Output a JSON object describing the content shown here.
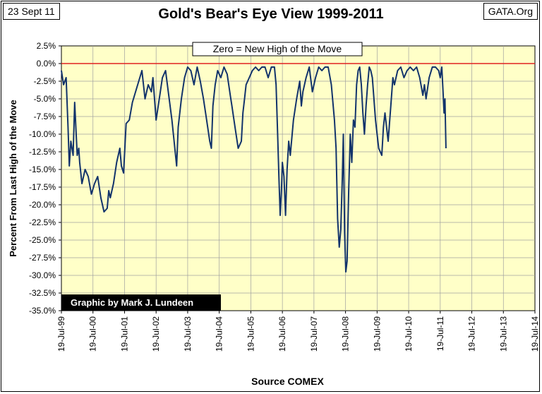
{
  "header": {
    "date": "23 Sept 11",
    "brand": "GATA.Org"
  },
  "chart_data": {
    "type": "line",
    "title": "Gold's Bear's Eye View 1999-2011",
    "xlabel": "Source COMEX",
    "ylabel": "Percent From Last High of the Move",
    "annotation": "Zero = New High of the Move",
    "credit": "Graphic by Mark J. Lundeen",
    "ylim": [
      -35,
      2.5
    ],
    "xlim": [
      1999.55,
      2014.55
    ],
    "grid": true,
    "yticks": [
      "2.5%",
      "0.0%",
      "-2.5%",
      "-5.0%",
      "-7.5%",
      "-10.0%",
      "-12.5%",
      "-15.0%",
      "-17.5%",
      "-20.0%",
      "-22.5%",
      "-25.0%",
      "-27.5%",
      "-30.0%",
      "-32.5%",
      "-35.0%"
    ],
    "xticks": [
      "19-Jul-99",
      "19-Jul-00",
      "19-Jul-01",
      "19-Jul-02",
      "19-Jul-03",
      "19-Jul-04",
      "19-Jul-05",
      "19-Jul-06",
      "19-Jul-07",
      "19-Jul-08",
      "19-Jul-09",
      "19-Jul-10",
      "19-Jul-11",
      "19-Jul-12",
      "19-Jul-13",
      "19-Jul-14"
    ],
    "reference_line": {
      "y": 0,
      "color": "#e02020"
    },
    "colors": {
      "plot_bg": "#ffffc8",
      "line": "#12336b",
      "grid": "#a0a0a0",
      "credit_bg": "#000000",
      "credit_text": "#ffffff"
    },
    "series": [
      {
        "name": "Percent From Last High",
        "x": [
          1999.55,
          1999.62,
          1999.7,
          1999.76,
          1999.8,
          1999.85,
          1999.92,
          1999.97,
          2000.05,
          2000.1,
          2000.13,
          2000.2,
          2000.3,
          2000.4,
          2000.5,
          2000.6,
          2000.7,
          2000.8,
          2000.9,
          2001.0,
          2001.05,
          2001.1,
          2001.2,
          2001.3,
          2001.4,
          2001.45,
          2001.52,
          2001.6,
          2001.7,
          2001.8,
          2001.9,
          2002.0,
          2002.1,
          2002.2,
          2002.3,
          2002.4,
          2002.45,
          2002.55,
          2002.65,
          2002.75,
          2002.85,
          2002.95,
          2003.05,
          2003.12,
          2003.2,
          2003.25,
          2003.35,
          2003.45,
          2003.55,
          2003.65,
          2003.75,
          2003.85,
          2003.95,
          2004.05,
          2004.15,
          2004.25,
          2004.3,
          2004.35,
          2004.42,
          2004.5,
          2004.6,
          2004.7,
          2004.8,
          2004.9,
          2004.95,
          2005.05,
          2005.15,
          2005.25,
          2005.3,
          2005.35,
          2005.4,
          2005.5,
          2005.6,
          2005.7,
          2005.8,
          2005.9,
          2006.0,
          2006.1,
          2006.2,
          2006.3,
          2006.35,
          2006.4,
          2006.44,
          2006.48,
          2006.52,
          2006.55,
          2006.6,
          2006.65,
          2006.7,
          2006.75,
          2006.8,
          2006.9,
          2007.0,
          2007.1,
          2007.15,
          2007.2,
          2007.3,
          2007.4,
          2007.5,
          2007.6,
          2007.7,
          2007.8,
          2007.9,
          2008.0,
          2008.1,
          2008.2,
          2008.25,
          2008.3,
          2008.35,
          2008.4,
          2008.45,
          2008.48,
          2008.52,
          2008.56,
          2008.6,
          2008.65,
          2008.7,
          2008.75,
          2008.8,
          2008.85,
          2008.9,
          2008.95,
          2009.0,
          2009.05,
          2009.1,
          2009.15,
          2009.2,
          2009.25,
          2009.3,
          2009.35,
          2009.4,
          2009.5,
          2009.6,
          2009.7,
          2009.75,
          2009.8,
          2009.9,
          2010.0,
          2010.05,
          2010.1,
          2010.2,
          2010.3,
          2010.4,
          2010.5,
          2010.6,
          2010.7,
          2010.8,
          2010.9,
          2011.0,
          2011.05,
          2011.1,
          2011.2,
          2011.3,
          2011.4,
          2011.5,
          2011.55,
          2011.6,
          2011.64,
          2011.67,
          2011.7,
          2011.73
        ],
        "values": [
          -1.0,
          -3.0,
          -2.0,
          -9.0,
          -14.5,
          -11.0,
          -13.0,
          -5.5,
          -13.0,
          -12.0,
          -14.0,
          -17.0,
          -15.0,
          -16.0,
          -18.5,
          -17.0,
          -16.0,
          -19.0,
          -21.0,
          -20.5,
          -18.0,
          -19.0,
          -17.0,
          -14.0,
          -12.0,
          -14.5,
          -15.5,
          -8.5,
          -8.0,
          -5.5,
          -4.0,
          -2.5,
          -1.0,
          -5.0,
          -3.0,
          -4.0,
          -2.0,
          -8.0,
          -5.0,
          -2.0,
          -1.0,
          -4.5,
          -8.0,
          -11.0,
          -14.5,
          -9.0,
          -5.0,
          -2.0,
          -0.5,
          -1.0,
          -3.0,
          -0.5,
          -2.5,
          -5.0,
          -8.0,
          -11.0,
          -12.0,
          -6.0,
          -3.0,
          -1.0,
          -2.0,
          -0.5,
          -1.5,
          -4.5,
          -6.0,
          -9.0,
          -12.0,
          -11.0,
          -7.0,
          -5.0,
          -3.0,
          -2.0,
          -1.0,
          -0.5,
          -1.0,
          -0.5,
          -0.5,
          -2.0,
          -0.5,
          -0.5,
          -3.0,
          -10.0,
          -16.0,
          -21.5,
          -18.0,
          -14.0,
          -16.0,
          -21.5,
          -15.0,
          -11.0,
          -13.0,
          -8.0,
          -5.0,
          -2.5,
          -6.0,
          -4.0,
          -2.0,
          -0.5,
          -4.0,
          -2.0,
          -0.5,
          -1.0,
          -0.5,
          -0.5,
          -3.0,
          -8.0,
          -12.0,
          -22.0,
          -26.0,
          -23.5,
          -16.0,
          -10.0,
          -24.0,
          -29.5,
          -28.0,
          -18.0,
          -10.0,
          -14.0,
          -8.0,
          -9.0,
          -3.0,
          -1.0,
          -0.5,
          -3.0,
          -7.0,
          -10.0,
          -6.0,
          -3.0,
          -0.5,
          -1.0,
          -2.0,
          -8.0,
          -12.0,
          -13.0,
          -9.0,
          -7.0,
          -11.0,
          -5.0,
          -2.0,
          -3.0,
          -1.0,
          -0.5,
          -2.0,
          -1.0,
          -0.5,
          -1.0,
          -0.5,
          -2.0,
          -4.5,
          -3.0,
          -5.0,
          -2.0,
          -0.5,
          -0.5,
          -1.0,
          -2.0,
          -0.5,
          -4.0,
          -7.0,
          -5.0,
          -12.0
        ]
      }
    ]
  }
}
